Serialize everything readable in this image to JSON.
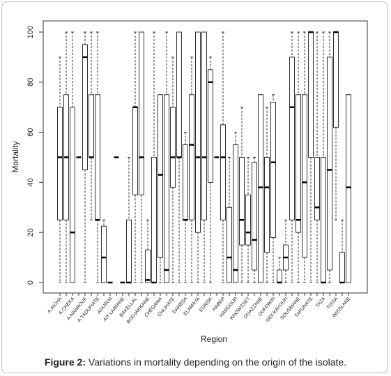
{
  "chart_data": {
    "type": "boxplot",
    "x_label": "Region",
    "y_label": "Mortality",
    "ylim": [
      0,
      100
    ],
    "yticks": [
      0,
      20,
      40,
      60,
      80,
      100
    ],
    "categories": [
      "A.AICHA",
      null,
      "A.CHEKA",
      null,
      "A.NAAROUF",
      null,
      "A.TAOUFIATE",
      null,
      "AGUIRAI",
      null,
      "AIT LAIMANE",
      null,
      "BAKELLAL",
      null,
      "BOUJAKKANE",
      null,
      "CHEDAWA",
      null,
      "CHLIHATE",
      null,
      "DAHBSA",
      null,
      "ELAMAYA",
      null,
      "EGROK",
      null,
      "HABEP",
      null,
      "HARDOUR",
      null,
      "KNOWSSET",
      null,
      "OUAZZANE",
      null,
      "OUFDIKIN",
      null,
      "SIDI KAYOUN",
      null,
      "SOUSMANE",
      null,
      "TAFUNATE",
      null,
      "TAZA",
      null,
      "TISSA",
      null,
      "WISSLANE"
    ],
    "whisker_low": [
      0,
      0,
      0,
      50,
      0,
      25,
      0,
      0,
      0,
      50,
      0,
      0,
      0,
      0,
      0,
      0,
      0,
      0,
      0,
      0,
      0,
      0,
      0,
      0,
      0,
      50,
      0,
      0,
      0,
      0,
      0,
      0,
      0,
      0,
      0,
      0,
      0,
      0,
      0,
      0,
      0,
      0,
      0,
      0,
      25,
      0,
      0
    ],
    "q1": [
      25,
      25,
      0,
      50,
      45,
      50,
      25,
      0,
      0,
      50,
      0,
      0,
      35,
      35,
      0,
      0,
      10,
      0,
      38,
      50,
      25,
      25,
      20,
      25,
      40,
      50,
      25,
      0,
      0,
      15,
      15,
      5,
      0,
      12,
      18,
      0,
      5,
      25,
      20,
      10,
      50,
      25,
      0,
      5,
      62,
      0,
      0
    ],
    "median": [
      50,
      50,
      20,
      50,
      90,
      50,
      25,
      10,
      0,
      50,
      0,
      0,
      70,
      50,
      1,
      0,
      43,
      5,
      50,
      50,
      25,
      55,
      50,
      50,
      80,
      50,
      50,
      10,
      5,
      25,
      20,
      17,
      38,
      38,
      48,
      0,
      10,
      70,
      25,
      40,
      100,
      30,
      0,
      45,
      100,
      0,
      38
    ],
    "q3": [
      70,
      75,
      70,
      50,
      95,
      75,
      75,
      22.5,
      0,
      50,
      0,
      25,
      70,
      100,
      13,
      50,
      75,
      75,
      70,
      100,
      55,
      75,
      100,
      100,
      85,
      50,
      63,
      30,
      55,
      50,
      35,
      48,
      75,
      50,
      72,
      5,
      15,
      90,
      75,
      75,
      100,
      50,
      50,
      90,
      100,
      12,
      75
    ],
    "whisker_high": [
      90,
      100,
      100,
      50,
      100,
      100,
      100,
      25,
      0,
      50,
      0,
      50,
      100,
      100,
      25,
      100,
      75,
      100,
      90,
      100,
      60,
      90,
      100,
      100,
      90,
      50,
      100,
      50,
      60,
      70,
      50,
      50,
      75,
      70,
      75,
      10,
      25,
      100,
      100,
      100,
      100,
      100,
      100,
      100,
      100,
      25,
      75
    ],
    "caption": {
      "label": "Figure 2:",
      "text": "Variations in mortality depending on the origin of the isolate."
    }
  }
}
